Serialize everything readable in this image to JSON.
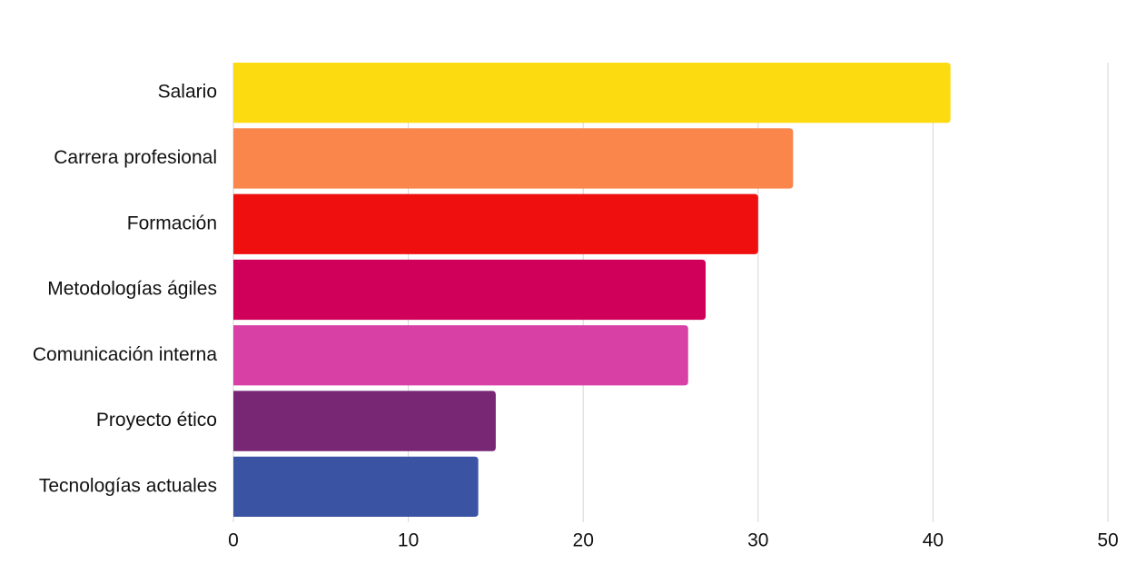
{
  "chart_data": {
    "type": "bar",
    "orientation": "horizontal",
    "categories": [
      "Salario",
      "Carrera profesional",
      "Formación",
      "Metodologías ágiles",
      "Comunicación interna",
      "Proyecto ético",
      "Tecnologías actuales"
    ],
    "values": [
      41,
      32,
      30,
      27,
      26,
      15,
      14
    ],
    "colors": [
      "#fddb11",
      "#fb864c",
      "#ef0f0f",
      "#d0005a",
      "#d840a6",
      "#772774",
      "#3a54a3"
    ],
    "xlim": [
      0,
      50
    ],
    "xticks": [
      0,
      10,
      20,
      30,
      40,
      50
    ],
    "grid": true
  }
}
